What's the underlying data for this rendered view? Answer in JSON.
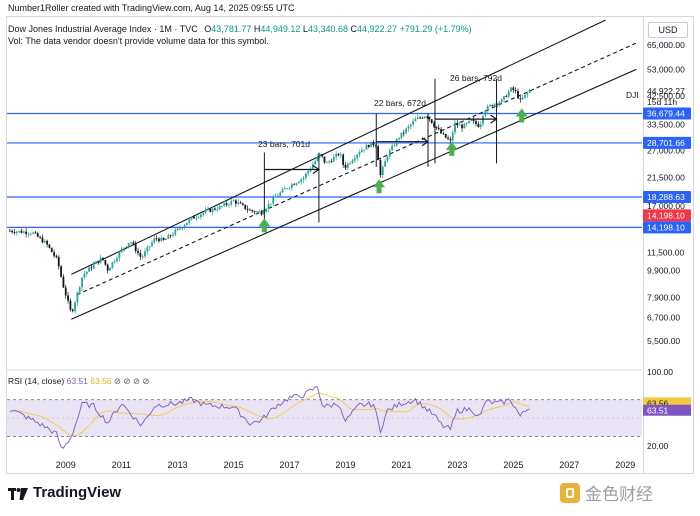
{
  "header": {
    "author_line": "Number1Roller created with TradingView.com, Aug 14, 2025 09:55 UTC",
    "symbol_title": "Dow Jones Industrial Average Index · 1M · TVC",
    "ohlc": {
      "o_label": "O",
      "o": "43,781.77",
      "h_label": "H",
      "h": "44,949.12",
      "l_label": "L",
      "l": "43,340.68",
      "c_label": "C",
      "c": "44,922.27",
      "change": "+791.29 (+1.79%)"
    },
    "volume_note": "Vol: The data vendor doesn't provide volume data for this symbol."
  },
  "currency": "USD",
  "price_tag": {
    "symbol": "DJI",
    "price": "44,922.27",
    "countdown": "15d 11h"
  },
  "annotations": {
    "a1": "23 bars, 701d",
    "a2": "22 bars, 672d",
    "a3": "26 bars, 792d"
  },
  "rsi": {
    "label": "RSI (14, close)",
    "value": "63.51",
    "ma_value": "63.56",
    "marks": "⊘ ⊘ ⊘ ⊘",
    "levels": [
      70,
      30
    ],
    "ticks": [
      "100.00",
      "20.00"
    ]
  },
  "footer": {
    "brand": "TradingView",
    "watermark": "金色财经"
  },
  "colors": {
    "up": "#26a69a",
    "down": "#131722",
    "hline": "#2962ff",
    "redline": "#f23645",
    "rsi": "#7e57c2",
    "rsi_ma": "#f5c842",
    "arrow": "#4caf50"
  },
  "chart_data": {
    "type": "candlestick",
    "title": "Dow Jones Industrial Average Index · 1M · TVC",
    "scale": "log",
    "x_ticks": [
      "2009",
      "2011",
      "2013",
      "2015",
      "2017",
      "2019",
      "2021",
      "2023",
      "2025",
      "2027",
      "2029"
    ],
    "y_ticks": [
      "65,000.00",
      "53,000.00",
      "42,500.00",
      "33,500.00",
      "27,000.00",
      "21,500.00",
      "17,000.00",
      "11,500.00",
      "9,900.00",
      "7,900.00",
      "6,700.00",
      "5,500.00"
    ],
    "ylim": [
      4700,
      82000
    ],
    "xlim": [
      2006.9,
      2029.6
    ],
    "series_anchors": [
      [
        2007.0,
        13800
      ],
      [
        2007.8,
        13600
      ],
      [
        2008.3,
        12400
      ],
      [
        2008.7,
        10800
      ],
      [
        2008.9,
        8800
      ],
      [
        2009.2,
        6900
      ],
      [
        2009.6,
        9500
      ],
      [
        2010.0,
        10400
      ],
      [
        2010.3,
        11000
      ],
      [
        2010.5,
        10000
      ],
      [
        2011.0,
        11800
      ],
      [
        2011.3,
        12700
      ],
      [
        2011.7,
        11000
      ],
      [
        2012.2,
        13000
      ],
      [
        2012.5,
        12700
      ],
      [
        2013.0,
        13900
      ],
      [
        2013.5,
        15300
      ],
      [
        2014.0,
        16200
      ],
      [
        2014.5,
        16800
      ],
      [
        2015.0,
        17700
      ],
      [
        2015.6,
        16300
      ],
      [
        2016.0,
        16100
      ],
      [
        2016.5,
        18300
      ],
      [
        2016.9,
        19800
      ],
      [
        2017.5,
        21500
      ],
      [
        2017.9,
        24600
      ],
      [
        2018.1,
        26100
      ],
      [
        2018.3,
        24100
      ],
      [
        2018.8,
        26400
      ],
      [
        2018.95,
        23300
      ],
      [
        2019.5,
        26800
      ],
      [
        2019.9,
        28500
      ],
      [
        2020.1,
        28300
      ],
      [
        2020.25,
        21900
      ],
      [
        2020.5,
        26000
      ],
      [
        2020.9,
        30000
      ],
      [
        2021.5,
        34800
      ],
      [
        2021.9,
        36300
      ],
      [
        2022.2,
        33000
      ],
      [
        2022.45,
        30800
      ],
      [
        2022.75,
        29000
      ],
      [
        2022.9,
        33700
      ],
      [
        2023.2,
        32800
      ],
      [
        2023.5,
        34500
      ],
      [
        2023.8,
        33000
      ],
      [
        2023.95,
        37700
      ],
      [
        2024.3,
        39800
      ],
      [
        2024.6,
        40800
      ],
      [
        2024.9,
        44900
      ],
      [
        2025.05,
        44500
      ],
      [
        2025.25,
        40700
      ],
      [
        2025.4,
        42300
      ],
      [
        2025.55,
        44100
      ],
      [
        2025.62,
        44922
      ]
    ],
    "horizontal_levels": [
      {
        "label": "36,679.44",
        "value": 36679.44
      },
      {
        "label": "28,701.66",
        "value": 28701.66
      },
      {
        "label": "18,288.63",
        "value": 18288.63
      },
      {
        "label": "14,198.10",
        "value": 14198.1
      }
    ],
    "red_level": {
      "label": "14,198.10",
      "value": 14198.1
    },
    "channel": {
      "lower_start": [
        2009.2,
        6600
      ],
      "lower_end": [
        2029.4,
        53000
      ],
      "upper_start": [
        2009.2,
        9600
      ],
      "upper_end": [
        2028.3,
        80000
      ],
      "mid_start": [
        2009.4,
        8100
      ],
      "mid_end": [
        2029.4,
        66000
      ]
    },
    "measures": [
      {
        "label": "23 bars, 701d",
        "x1": 2016.1,
        "x2": 2018.05,
        "y": 23000,
        "vtop": 26500,
        "vbottom": 14800
      },
      {
        "label": "22 bars, 672d",
        "x1": 2020.1,
        "x2": 2021.95,
        "y": 29000,
        "vtop": 36700,
        "vbottom": 23500
      },
      {
        "label": "26 bars, 792d",
        "x1": 2022.2,
        "x2": 2024.4,
        "y": 35000,
        "vtop": 49000,
        "vbottom": 24200
      }
    ],
    "green_arrows": [
      [
        2016.1,
        14800
      ],
      [
        2020.2,
        20500
      ],
      [
        2022.8,
        28000
      ],
      [
        2025.3,
        37000
      ]
    ],
    "rsi_anchors": [
      [
        2007.0,
        60
      ],
      [
        2007.8,
        48
      ],
      [
        2008.3,
        40
      ],
      [
        2008.7,
        32
      ],
      [
        2008.85,
        15
      ],
      [
        2009.2,
        30
      ],
      [
        2009.6,
        66
      ],
      [
        2010.0,
        63
      ],
      [
        2010.5,
        45
      ],
      [
        2011.0,
        66
      ],
      [
        2011.7,
        42
      ],
      [
        2012.2,
        64
      ],
      [
        2013.0,
        66
      ],
      [
        2013.5,
        70
      ],
      [
        2014.0,
        64
      ],
      [
        2015.0,
        62
      ],
      [
        2015.6,
        44
      ],
      [
        2016.0,
        48
      ],
      [
        2016.5,
        63
      ],
      [
        2017.0,
        72
      ],
      [
        2017.5,
        75
      ],
      [
        2018.0,
        84
      ],
      [
        2018.2,
        62
      ],
      [
        2018.8,
        66
      ],
      [
        2018.95,
        45
      ],
      [
        2019.5,
        64
      ],
      [
        2020.0,
        65
      ],
      [
        2020.25,
        37
      ],
      [
        2020.5,
        58
      ],
      [
        2021.0,
        66
      ],
      [
        2021.5,
        70
      ],
      [
        2022.2,
        52
      ],
      [
        2022.45,
        42
      ],
      [
        2022.75,
        38
      ],
      [
        2023.0,
        58
      ],
      [
        2023.5,
        60
      ],
      [
        2023.8,
        50
      ],
      [
        2024.0,
        68
      ],
      [
        2024.5,
        66
      ],
      [
        2024.9,
        70
      ],
      [
        2025.25,
        52
      ],
      [
        2025.62,
        63.5
      ]
    ]
  }
}
